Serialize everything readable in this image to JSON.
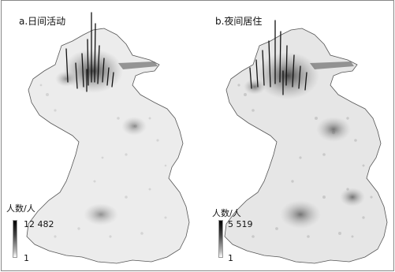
{
  "panels": [
    {
      "title": "a.日间活动",
      "legend": {
        "title": "人数/人",
        "max": "12 482",
        "min": "1"
      }
    },
    {
      "title": "b.夜间居住",
      "legend": {
        "title": "人数/人",
        "max": "5 519",
        "min": "1"
      }
    }
  ]
}
